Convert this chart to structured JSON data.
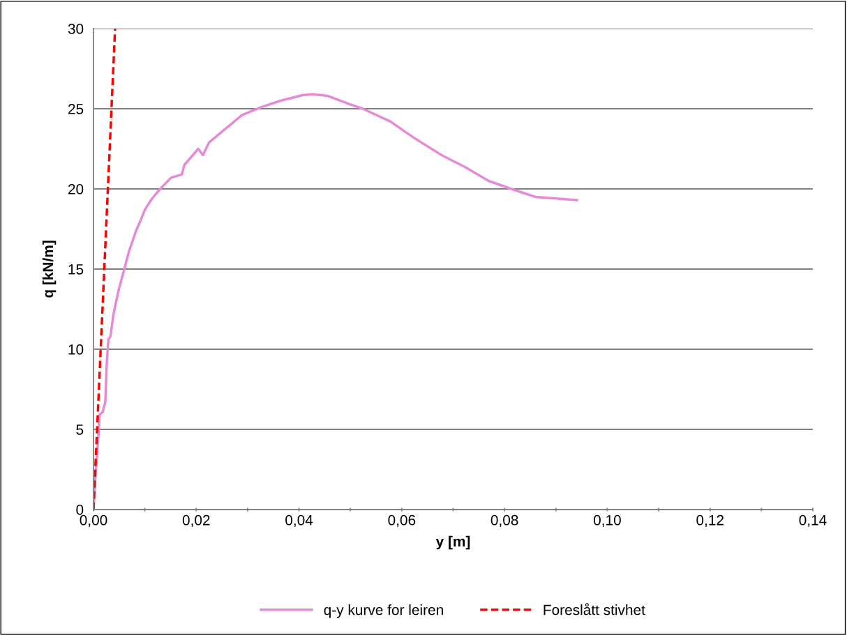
{
  "chart_data": {
    "type": "line",
    "xlabel": "y [m]",
    "ylabel": "q [kN/m]",
    "xlim": [
      0,
      0.14
    ],
    "ylim": [
      0,
      30
    ],
    "xticks": [
      {
        "value": 0,
        "label": "0,00"
      },
      {
        "value": 0.01,
        "label": null
      },
      {
        "value": 0.02,
        "label": "0,02"
      },
      {
        "value": 0.03,
        "label": null
      },
      {
        "value": 0.04,
        "label": "0,04"
      },
      {
        "value": 0.05,
        "label": null
      },
      {
        "value": 0.06,
        "label": "0,06"
      },
      {
        "value": 0.07,
        "label": null
      },
      {
        "value": 0.08,
        "label": "0,08"
      },
      {
        "value": 0.09,
        "label": null
      },
      {
        "value": 0.1,
        "label": "0,10"
      },
      {
        "value": 0.11,
        "label": null
      },
      {
        "value": 0.12,
        "label": "0,12"
      },
      {
        "value": 0.13,
        "label": null
      },
      {
        "value": 0.14,
        "label": "0,14"
      }
    ],
    "yticks": [
      0,
      5,
      10,
      15,
      20,
      25,
      30
    ],
    "grid": "y",
    "legend": "bottom",
    "marker": "none",
    "series": [
      {
        "name": "q-y kurve for leiren",
        "color": "#e58ad6",
        "line_style": "solid",
        "x": [
          0,
          0.0004,
          0.001,
          0.0012,
          0.0018,
          0.0023,
          0.0026,
          0.0029,
          0.0033,
          0.0039,
          0.0049,
          0.006,
          0.0069,
          0.0083,
          0.009,
          0.01,
          0.0114,
          0.013,
          0.0151,
          0.0172,
          0.0177,
          0.0204,
          0.0213,
          0.0225,
          0.0253,
          0.0289,
          0.0327,
          0.0364,
          0.0407,
          0.0426,
          0.0456,
          0.0501,
          0.0524,
          0.0578,
          0.0623,
          0.0678,
          0.0724,
          0.0769,
          0.0813,
          0.086,
          0.0941
        ],
        "values": [
          0,
          2.2,
          4.8,
          5.9,
          6.1,
          6.7,
          9.2,
          10.6,
          10.8,
          12.2,
          13.7,
          15.0,
          16.1,
          17.4,
          17.9,
          18.7,
          19.4,
          20.0,
          20.7,
          20.9,
          21.5,
          22.5,
          22.1,
          22.9,
          23.65,
          24.6,
          25.1,
          25.5,
          25.85,
          25.9,
          25.8,
          25.26,
          25.0,
          24.2,
          23.2,
          22.1,
          21.35,
          20.5,
          20.0,
          19.5,
          19.3
        ]
      },
      {
        "name": "Foreslått stivhet",
        "color": "#ff0000",
        "line_style": "dashed",
        "x": [
          0,
          0.0042
        ],
        "values": [
          0,
          30
        ]
      }
    ]
  }
}
